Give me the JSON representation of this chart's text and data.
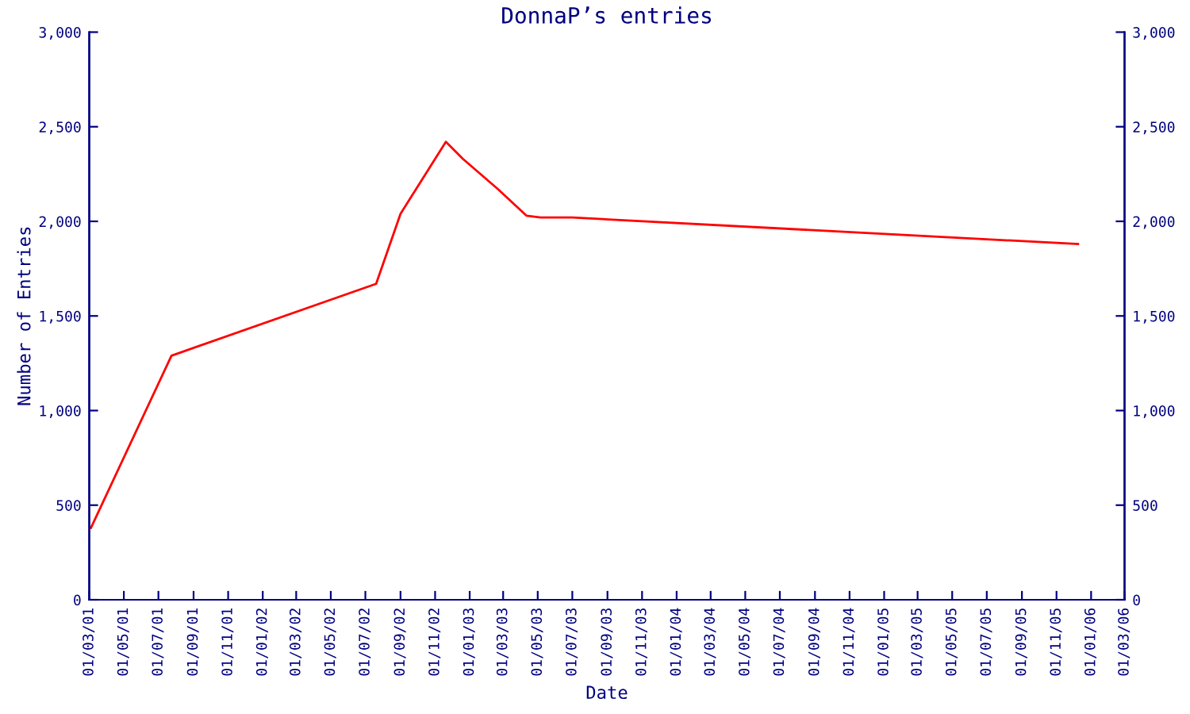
{
  "chart_data": {
    "type": "line",
    "title": "DonnaP’s entries",
    "xlabel": "Date",
    "ylabel": "Number of Entries",
    "series": [
      {
        "color": "#ff0000",
        "x": [
          "2001-03-04",
          "2001-07-24",
          "2002-07-20",
          "2002-09-01",
          "2002-11-20",
          "2002-12-20",
          "2003-02-20",
          "2003-04-11",
          "2003-05-06",
          "2003-07-01",
          "2005-12-09"
        ],
        "values": [
          380,
          1290,
          1670,
          2040,
          2420,
          2330,
          2170,
          2030,
          2020,
          2020,
          1880
        ]
      }
    ],
    "xlim": [
      "2001-03-01",
      "2006-03-01"
    ],
    "xticks": [
      {
        "value": "2001-03-01",
        "label": "01/03/01"
      },
      {
        "value": "2001-05-01",
        "label": "01/05/01"
      },
      {
        "value": "2001-07-01",
        "label": "01/07/01"
      },
      {
        "value": "2001-09-01",
        "label": "01/09/01"
      },
      {
        "value": "2001-11-01",
        "label": "01/11/01"
      },
      {
        "value": "2002-01-01",
        "label": "01/01/02"
      },
      {
        "value": "2002-03-01",
        "label": "01/03/02"
      },
      {
        "value": "2002-05-01",
        "label": "01/05/02"
      },
      {
        "value": "2002-07-01",
        "label": "01/07/02"
      },
      {
        "value": "2002-09-01",
        "label": "01/09/02"
      },
      {
        "value": "2002-11-01",
        "label": "01/11/02"
      },
      {
        "value": "2003-01-01",
        "label": "01/01/03"
      },
      {
        "value": "2003-03-01",
        "label": "01/03/03"
      },
      {
        "value": "2003-05-01",
        "label": "01/05/03"
      },
      {
        "value": "2003-07-01",
        "label": "01/07/03"
      },
      {
        "value": "2003-09-01",
        "label": "01/09/03"
      },
      {
        "value": "2003-11-01",
        "label": "01/11/03"
      },
      {
        "value": "2004-01-01",
        "label": "01/01/04"
      },
      {
        "value": "2004-03-01",
        "label": "01/03/04"
      },
      {
        "value": "2004-05-01",
        "label": "01/05/04"
      },
      {
        "value": "2004-07-01",
        "label": "01/07/04"
      },
      {
        "value": "2004-09-01",
        "label": "01/09/04"
      },
      {
        "value": "2004-11-01",
        "label": "01/11/04"
      },
      {
        "value": "2005-01-01",
        "label": "01/01/05"
      },
      {
        "value": "2005-03-01",
        "label": "01/03/05"
      },
      {
        "value": "2005-05-01",
        "label": "01/05/05"
      },
      {
        "value": "2005-07-01",
        "label": "01/07/05"
      },
      {
        "value": "2005-09-01",
        "label": "01/09/05"
      },
      {
        "value": "2005-11-01",
        "label": "01/11/05"
      },
      {
        "value": "2006-01-01",
        "label": "01/01/06"
      },
      {
        "value": "2006-03-01",
        "label": "01/03/06"
      }
    ],
    "ylim": [
      0,
      3000
    ],
    "yticks": [
      0,
      {
        "value": 500,
        "label": "500"
      },
      {
        "value": 1000,
        "label": "1,000"
      },
      {
        "value": 1500,
        "label": "1,500"
      },
      {
        "value": 2000,
        "label": "2,000"
      },
      {
        "value": 2500,
        "label": "2,500"
      },
      {
        "value": 3000,
        "label": "3,000"
      }
    ],
    "y2lim": [
      0,
      3000
    ],
    "y2ticks": [
      0,
      {
        "value": 500,
        "label": "500"
      },
      {
        "value": 1000,
        "label": "1,000"
      },
      {
        "value": 1500,
        "label": "1,500"
      },
      {
        "value": 2000,
        "label": "2,000"
      },
      {
        "value": 2500,
        "label": "2,500"
      },
      {
        "value": 3000,
        "label": "3,000"
      }
    ],
    "grid": false,
    "marker": "none",
    "line_style": "solid"
  }
}
